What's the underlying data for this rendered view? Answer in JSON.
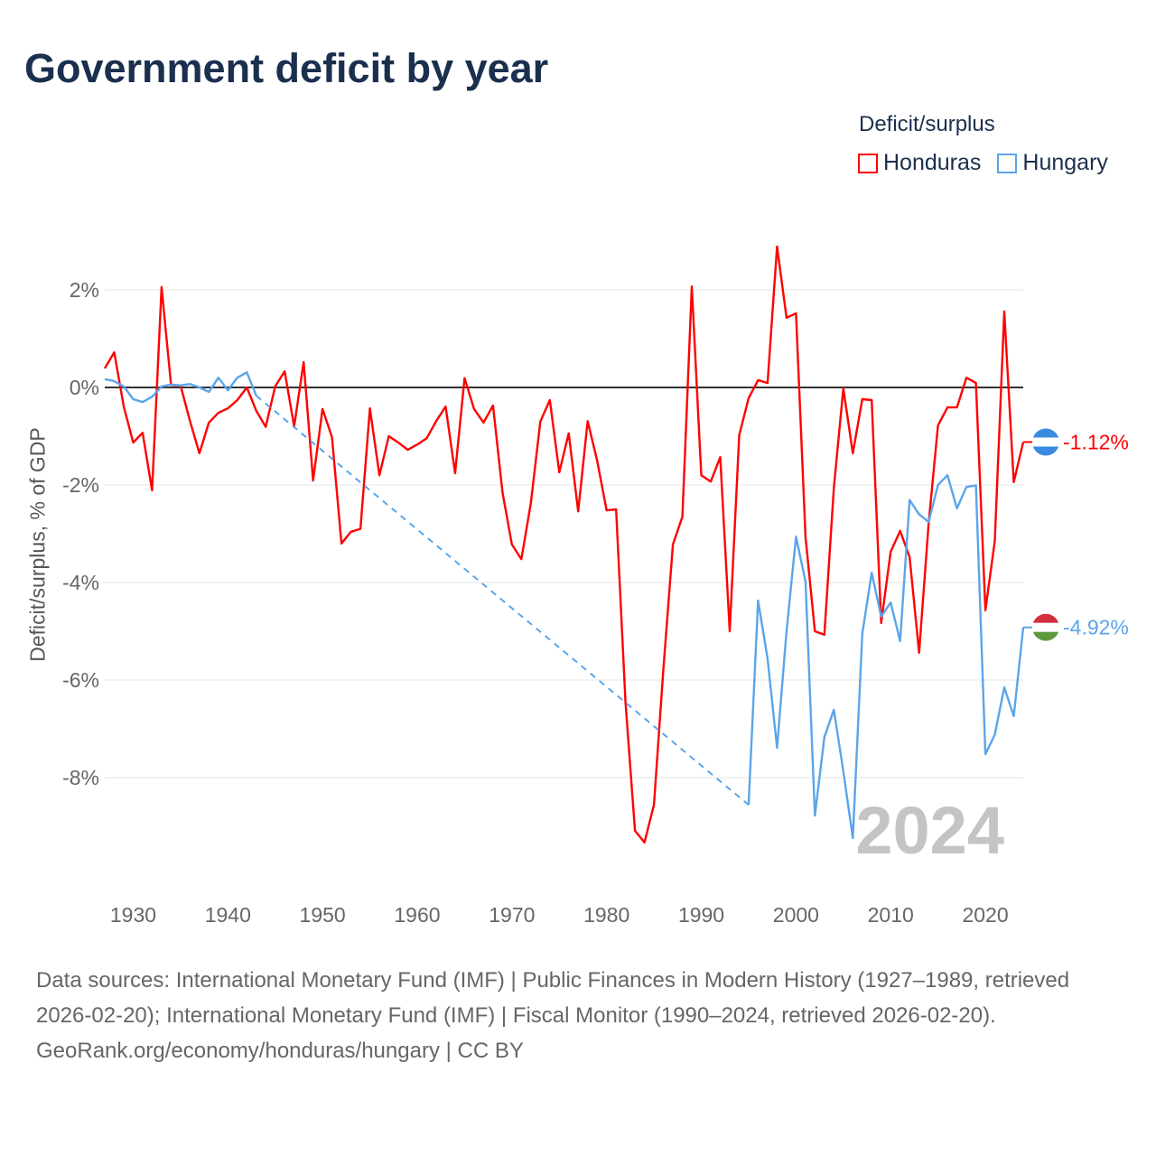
{
  "chart_data": {
    "type": "line",
    "title": "Government deficit by year",
    "ylabel": "Deficit/surplus, % of GDP",
    "xlabel": "",
    "xlim": [
      1927,
      2024
    ],
    "ylim": [
      -10,
      3
    ],
    "x_ticks": [
      "1930",
      "1940",
      "1950",
      "1960",
      "1970",
      "1980",
      "1990",
      "2000",
      "2010",
      "2020"
    ],
    "y_ticks": [
      {
        "v": 2,
        "label": "2%"
      },
      {
        "v": 0,
        "label": "0%"
      },
      {
        "v": -2,
        "label": "-2%"
      },
      {
        "v": -4,
        "label": "-4%"
      },
      {
        "v": -6,
        "label": "-6%"
      },
      {
        "v": -8,
        "label": "-8%"
      }
    ],
    "grid": true,
    "legend_title": "Deficit/surplus",
    "legend_position": "top-right",
    "year_watermark": "2024",
    "series": [
      {
        "name": "Honduras",
        "color": "#ff0000",
        "end_label": "-1.12%",
        "x": [
          1927,
          1928,
          1929,
          1930,
          1931,
          1932,
          1933,
          1934,
          1935,
          1936,
          1937,
          1938,
          1939,
          1940,
          1941,
          1942,
          1943,
          1944,
          1945,
          1946,
          1947,
          1948,
          1949,
          1950,
          1951,
          1952,
          1953,
          1954,
          1955,
          1956,
          1957,
          1958,
          1959,
          1960,
          1961,
          1962,
          1963,
          1964,
          1965,
          1966,
          1967,
          1968,
          1969,
          1970,
          1971,
          1972,
          1973,
          1974,
          1975,
          1976,
          1977,
          1978,
          1979,
          1980,
          1981,
          1982,
          1983,
          1984,
          1985,
          1986,
          1987,
          1988,
          1989,
          1990,
          1991,
          1992,
          1993,
          1994,
          1995,
          1996,
          1997,
          1998,
          1999,
          2000,
          2001,
          2002,
          2003,
          2004,
          2005,
          2006,
          2007,
          2008,
          2009,
          2010,
          2011,
          2012,
          2013,
          2014,
          2015,
          2016,
          2017,
          2018,
          2019,
          2020,
          2021,
          2022,
          2023,
          2024
        ],
        "values": [
          0.39,
          0.72,
          -0.39,
          -1.13,
          -0.93,
          -2.11,
          2.06,
          0.05,
          0.04,
          -0.69,
          -1.35,
          -0.72,
          -0.52,
          -0.43,
          -0.26,
          0.0,
          -0.48,
          -0.81,
          0.02,
          0.33,
          -0.8,
          0.52,
          -1.91,
          -0.44,
          -1.02,
          -3.2,
          -2.96,
          -2.9,
          -0.43,
          -1.8,
          -1.0,
          -1.13,
          -1.28,
          -1.17,
          -1.04,
          -0.69,
          -0.39,
          -1.76,
          0.19,
          -0.44,
          -0.72,
          -0.37,
          -2.15,
          -3.22,
          -3.52,
          -2.37,
          -0.7,
          -0.26,
          -1.74,
          -0.94,
          -2.54,
          -0.69,
          -1.5,
          -2.52,
          -2.5,
          -6.46,
          -9.09,
          -9.33,
          -8.56,
          -5.76,
          -3.22,
          -2.65,
          2.07,
          -1.8,
          -1.93,
          -1.43,
          -5.0,
          -0.98,
          -0.22,
          0.15,
          0.09,
          2.89,
          1.43,
          1.52,
          -3.06,
          -5.0,
          -5.07,
          -2.06,
          -0.02,
          -1.35,
          -0.24,
          -0.26,
          -4.83,
          -3.37,
          -2.94,
          -3.48,
          -5.44,
          -2.8,
          -0.78,
          -0.41,
          -0.41,
          0.2,
          0.09,
          -4.57,
          -3.15,
          1.56,
          -1.94,
          -1.12
        ]
      },
      {
        "name": "Hungary",
        "color": "#5aa5ea",
        "end_label": "-4.92%",
        "x": [
          1927,
          1928,
          1929,
          1930,
          1931,
          1932,
          1933,
          1934,
          1935,
          1936,
          1937,
          1938,
          1939,
          1940,
          1941,
          1942,
          1943,
          1995,
          1996,
          1997,
          1998,
          1999,
          2000,
          2001,
          2002,
          2003,
          2004,
          2005,
          2006,
          2007,
          2008,
          2009,
          2010,
          2011,
          2012,
          2013,
          2014,
          2015,
          2016,
          2017,
          2018,
          2019,
          2020,
          2021,
          2022,
          2023,
          2024
        ],
        "values": [
          0.17,
          0.13,
          0.02,
          -0.24,
          -0.3,
          -0.19,
          0.02,
          0.06,
          0.04,
          0.07,
          0.0,
          -0.09,
          0.2,
          -0.06,
          0.2,
          0.31,
          -0.17,
          -8.56,
          -4.37,
          -5.56,
          -7.39,
          -5.0,
          -3.06,
          -3.98,
          -8.78,
          -7.17,
          -6.61,
          -7.87,
          -9.24,
          -5.05,
          -3.8,
          -4.7,
          -4.41,
          -5.2,
          -2.31,
          -2.6,
          -2.76,
          -2.0,
          -1.8,
          -2.48,
          -2.04,
          -2.01,
          -7.52,
          -7.12,
          -6.15,
          -6.74,
          -4.92
        ],
        "missing_range": [
          1944,
          1994
        ]
      }
    ]
  },
  "footer": {
    "sources": "Data sources: International Monetary Fund (IMF) | Public Finances in Modern History (1927–1989, retrieved 2026-02-20); International Monetary Fund (IMF) | Fiscal Monitor (1990–2024, retrieved 2026-02-20).",
    "credit": "GeoRank.org/economy/honduras/hungary | CC BY"
  }
}
